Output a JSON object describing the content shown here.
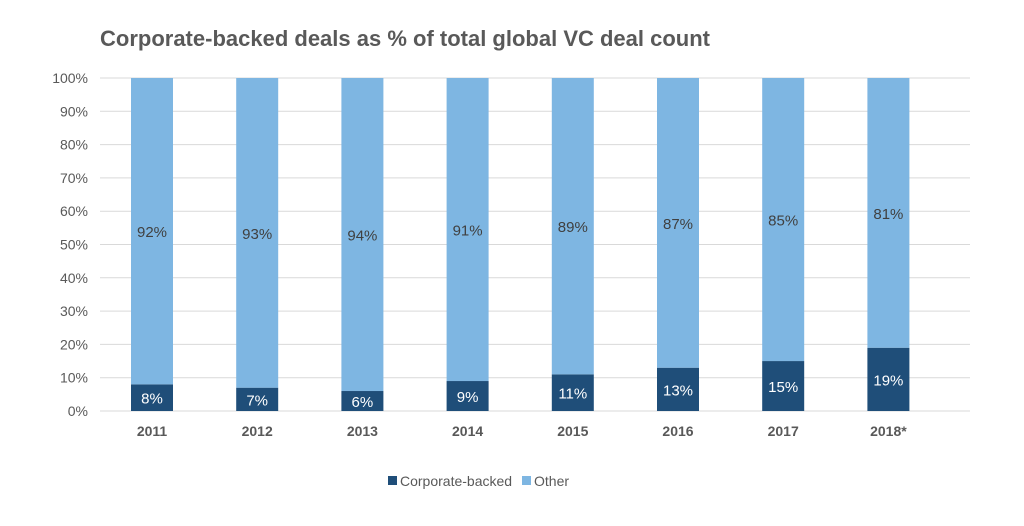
{
  "chart_data": {
    "type": "bar",
    "stacked": true,
    "title": "Corporate-backed deals as % of total global VC deal count",
    "xlabel": "",
    "ylabel": "",
    "ylim": [
      0,
      100
    ],
    "y_ticks": [
      "0%",
      "10%",
      "20%",
      "30%",
      "40%",
      "50%",
      "60%",
      "70%",
      "80%",
      "90%",
      "100%"
    ],
    "grid": true,
    "legend_position": "bottom",
    "categories": [
      "2011",
      "2012",
      "2013",
      "2014",
      "2015",
      "2016",
      "2017",
      "2018*"
    ],
    "series": [
      {
        "name": "Corporate-backed",
        "color": "#1F4E79",
        "values": [
          8,
          7,
          6,
          9,
          11,
          13,
          15,
          19
        ],
        "labels": [
          "8%",
          "7%",
          "6%",
          "9%",
          "11%",
          "13%",
          "15%",
          "19%"
        ]
      },
      {
        "name": "Other",
        "color": "#7EB6E2",
        "values": [
          92,
          93,
          94,
          91,
          89,
          87,
          85,
          81
        ],
        "labels": [
          "92%",
          "93%",
          "94%",
          "91%",
          "89%",
          "87%",
          "85%",
          "81%"
        ]
      }
    ]
  }
}
